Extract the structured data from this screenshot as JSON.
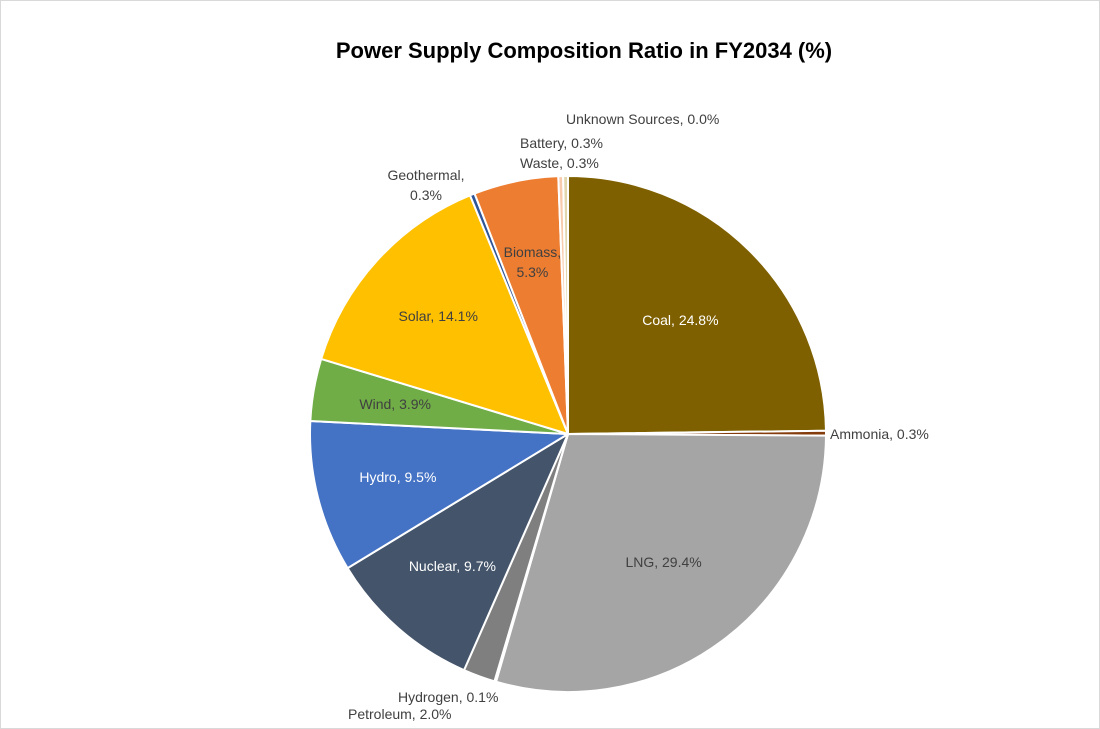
{
  "chart_data": {
    "type": "pie",
    "title": "Power Supply Composition Ratio in FY2034 (%)",
    "unit": "%",
    "start_angle_deg": 0,
    "direction": "clockwise",
    "legend": "none",
    "slices": [
      {
        "label": "Coal",
        "value": 24.8,
        "display": "Coal, 24.8%",
        "color": "#7F6000",
        "label_color": "#ffffff",
        "label_pos": "inside"
      },
      {
        "label": "Ammonia",
        "value": 0.3,
        "display": "Ammonia, 0.3%",
        "color": "#843C0C",
        "label_color": "#404040",
        "label_pos": "outside"
      },
      {
        "label": "LNG",
        "value": 29.4,
        "display": "LNG, 29.4%",
        "color": "#A5A5A5",
        "label_color": "#404040",
        "label_pos": "inside"
      },
      {
        "label": "Hydrogen",
        "value": 0.1,
        "display": "Hydrogen, 0.1%",
        "color": "#D9D9D9",
        "label_color": "#404040",
        "label_pos": "outside"
      },
      {
        "label": "Petroleum",
        "value": 2.0,
        "display": "Petroleum, 2.0%",
        "color": "#7F7F7F",
        "label_color": "#404040",
        "label_pos": "outside"
      },
      {
        "label": "Nuclear",
        "value": 9.7,
        "display": "Nuclear, 9.7%",
        "color": "#44546A",
        "label_color": "#ffffff",
        "label_pos": "inside"
      },
      {
        "label": "Hydro",
        "value": 9.5,
        "display": "Hydro, 9.5%",
        "color": "#4472C4",
        "label_color": "#ffffff",
        "label_pos": "inside"
      },
      {
        "label": "Wind",
        "value": 3.9,
        "display": "Wind, 3.9%",
        "color": "#70AD47",
        "label_color": "#404040",
        "label_pos": "inside"
      },
      {
        "label": "Solar",
        "value": 14.1,
        "display": "Solar, 14.1%",
        "color": "#FFC000",
        "label_color": "#404040",
        "label_pos": "inside"
      },
      {
        "label": "Geothermal",
        "value": 0.3,
        "display": "Geothermal, 0.3%",
        "color": "#2F5597",
        "label_color": "#404040",
        "label_pos": "outside"
      },
      {
        "label": "Biomass",
        "value": 5.3,
        "display": "Biomass, 5.3%",
        "color": "#ED7D31",
        "label_color": "#404040",
        "label_pos": "inside"
      },
      {
        "label": "Waste",
        "value": 0.3,
        "display": "Waste, 0.3%",
        "color": "#F8CBAD",
        "label_color": "#404040",
        "label_pos": "outside"
      },
      {
        "label": "Battery",
        "value": 0.3,
        "display": "Battery, 0.3%",
        "color": "#E2D6AE",
        "label_color": "#404040",
        "label_pos": "outside"
      },
      {
        "label": "Unknown Sources",
        "value": 0.0,
        "display": "Unknown Sources, 0.0%",
        "color": "#BDD7EE",
        "label_color": "#404040",
        "label_pos": "outside"
      }
    ]
  }
}
